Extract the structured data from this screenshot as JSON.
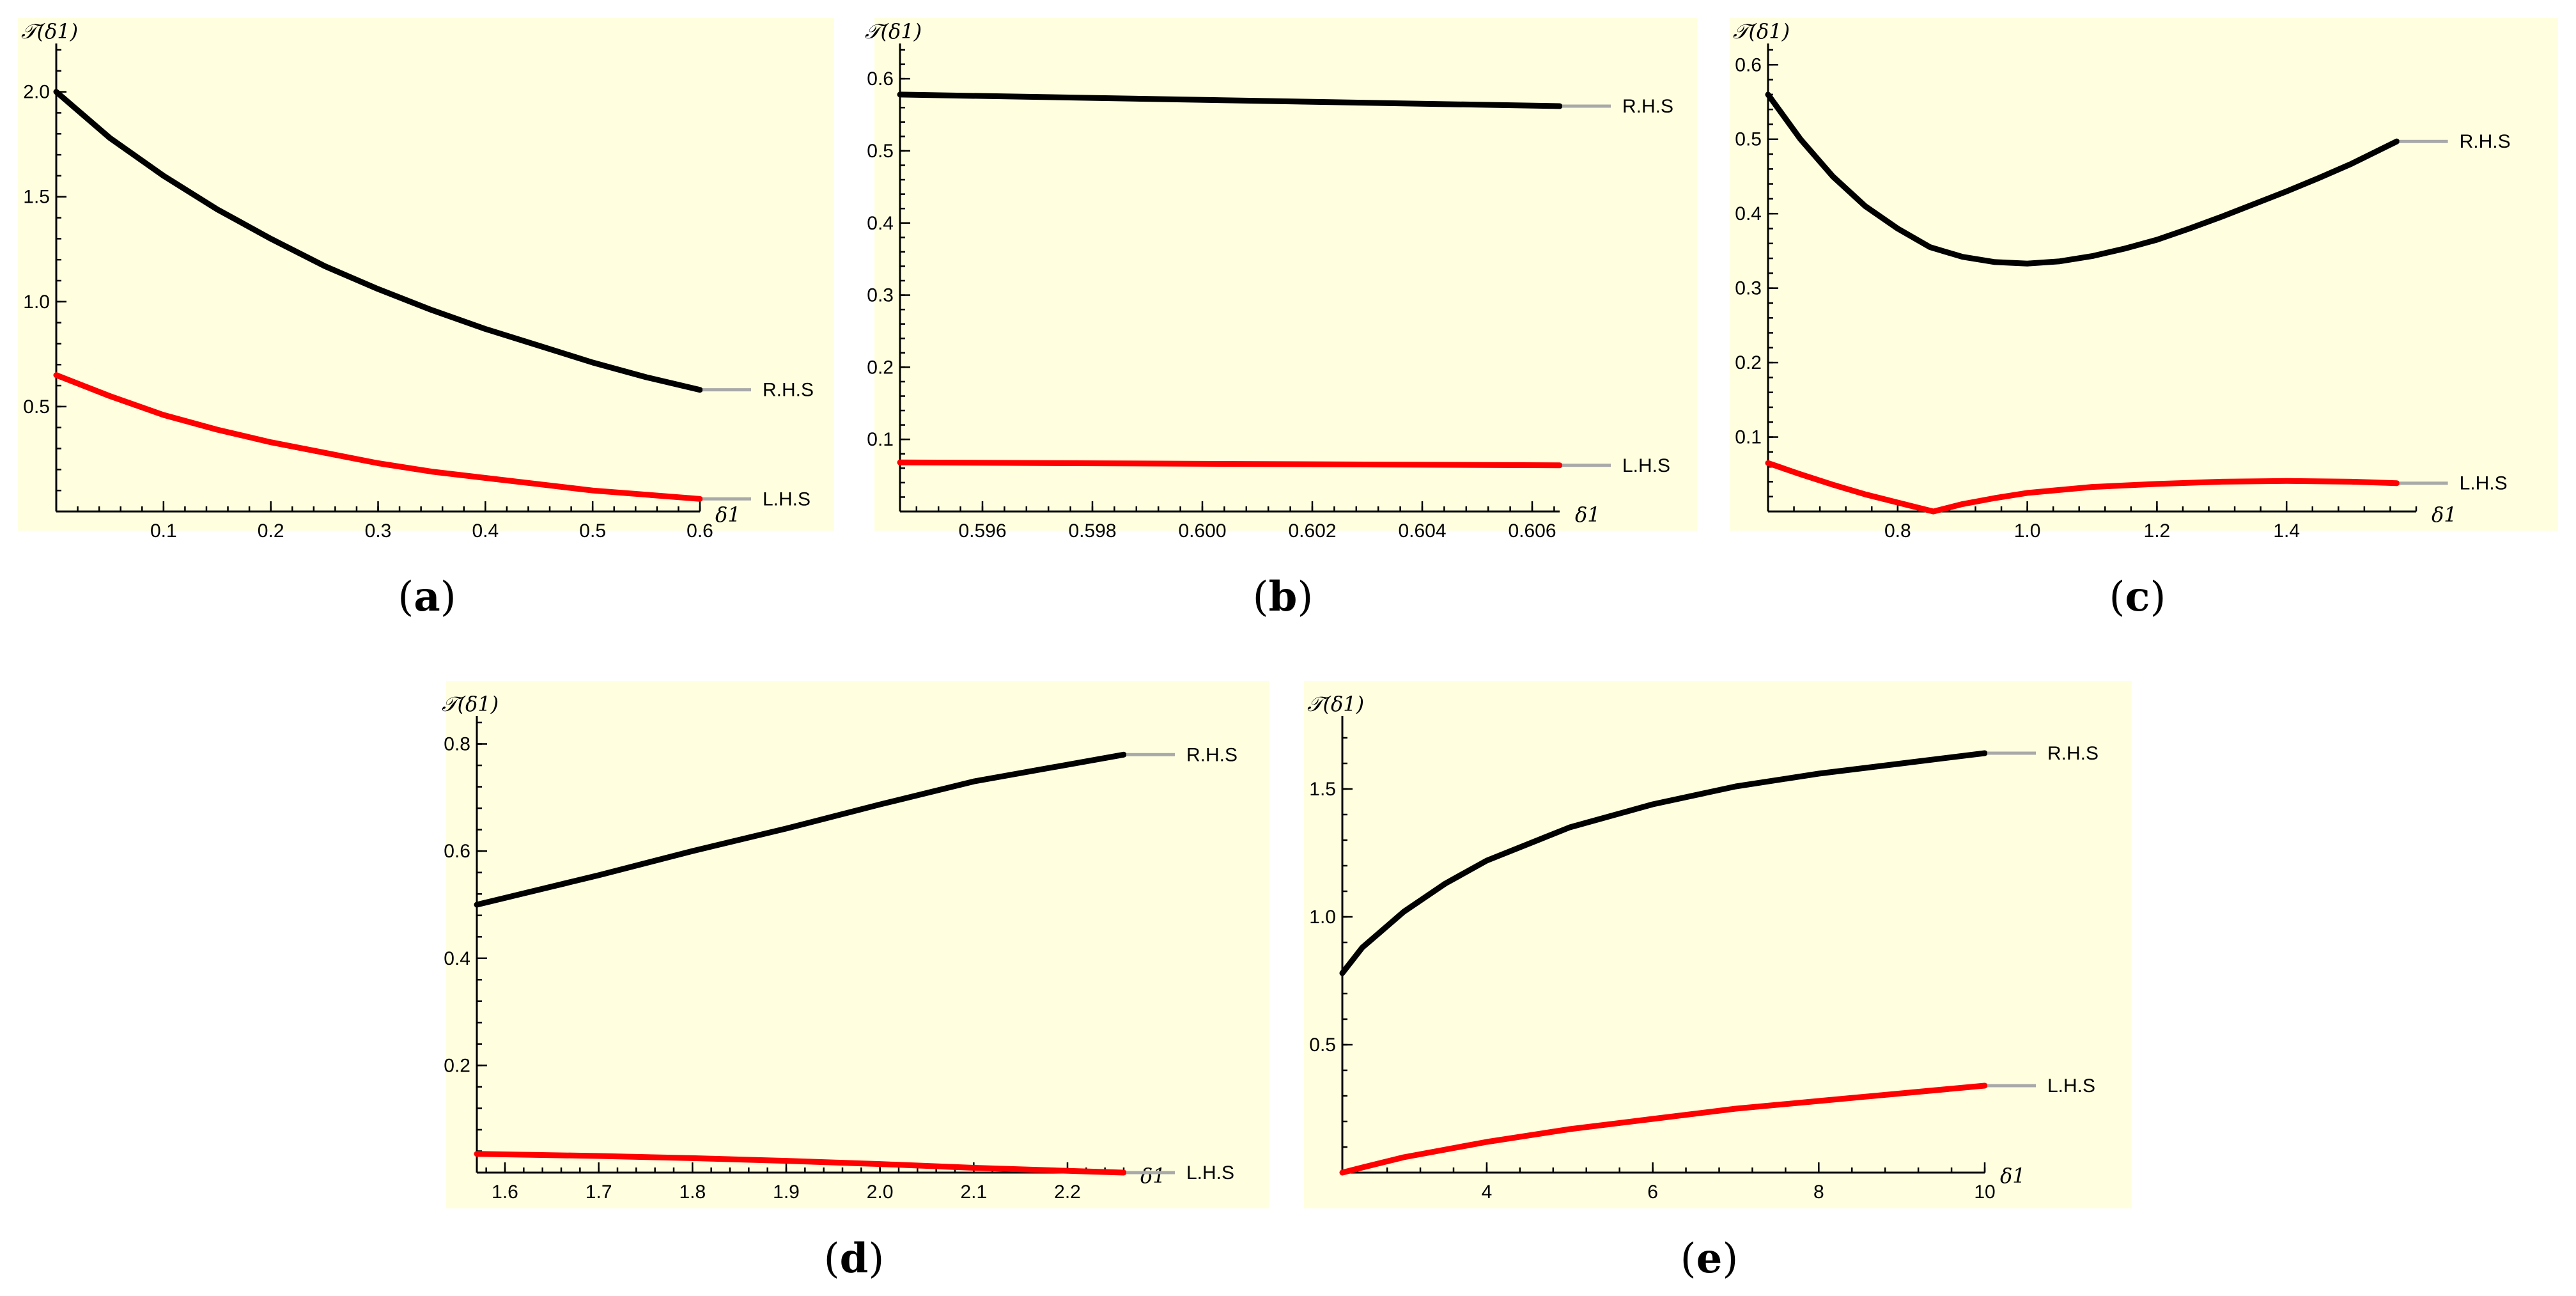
{
  "colors": {
    "panel_bg": "#ffffe0",
    "rhs": "#000000",
    "lhs": "#ff0000",
    "legend_line": "#a9a9a9"
  },
  "chart_data": [
    {
      "id": "a",
      "type": "line",
      "caption": "a",
      "xlabel": "δ1",
      "ylabel": "𝒯(δ1)",
      "xlim": [
        0,
        0.6
      ],
      "ylim": [
        0,
        2.2
      ],
      "xticks": [
        0.1,
        0.2,
        0.3,
        0.4,
        0.5,
        0.6
      ],
      "xtick_labels": [
        "0.1",
        "0.2",
        "0.3",
        "0.4",
        "0.5",
        "0.6"
      ],
      "yticks": [
        0.5,
        1.0,
        1.5,
        2.0
      ],
      "ytick_labels": [
        "0.5",
        "1.0",
        "1.5",
        "2.0"
      ],
      "series": [
        {
          "name": "R.H.S",
          "x": [
            0,
            0.05,
            0.1,
            0.15,
            0.2,
            0.25,
            0.3,
            0.35,
            0.4,
            0.45,
            0.5,
            0.55,
            0.6
          ],
          "y": [
            2.0,
            1.78,
            1.6,
            1.44,
            1.3,
            1.17,
            1.06,
            0.96,
            0.87,
            0.79,
            0.71,
            0.64,
            0.58
          ]
        },
        {
          "name": "L.H.S",
          "x": [
            0,
            0.05,
            0.1,
            0.15,
            0.2,
            0.25,
            0.3,
            0.35,
            0.4,
            0.45,
            0.5,
            0.55,
            0.6
          ],
          "y": [
            0.65,
            0.55,
            0.46,
            0.39,
            0.33,
            0.28,
            0.23,
            0.19,
            0.16,
            0.13,
            0.1,
            0.08,
            0.06
          ]
        }
      ]
    },
    {
      "id": "b",
      "type": "line",
      "caption": "b",
      "xlabel": "δ1",
      "ylabel": "𝒯(δ1)",
      "xlim": [
        0.5945,
        0.6065
      ],
      "ylim": [
        0,
        0.64
      ],
      "xticks": [
        0.596,
        0.598,
        0.6,
        0.602,
        0.604,
        0.606
      ],
      "xtick_labels": [
        "0.596",
        "0.598",
        "0.600",
        "0.602",
        "0.604",
        "0.606"
      ],
      "yticks": [
        0.1,
        0.2,
        0.3,
        0.4,
        0.5,
        0.6
      ],
      "ytick_labels": [
        "0.1",
        "0.2",
        "0.3",
        "0.4",
        "0.5",
        "0.6"
      ],
      "series": [
        {
          "name": "R.H.S",
          "x": [
            0.5945,
            0.6065
          ],
          "y": [
            0.578,
            0.562
          ]
        },
        {
          "name": "L.H.S",
          "x": [
            0.5945,
            0.6065
          ],
          "y": [
            0.068,
            0.064
          ]
        }
      ]
    },
    {
      "id": "c",
      "type": "line",
      "caption": "c",
      "xlabel": "δ1",
      "ylabel": "𝒯(δ1)",
      "xlim": [
        0.6,
        1.6
      ],
      "ylim": [
        0,
        0.62
      ],
      "xticks": [
        0.8,
        1.0,
        1.2,
        1.4
      ],
      "xtick_labels": [
        "0.8",
        "1.0",
        "1.2",
        "1.4"
      ],
      "yticks": [
        0.1,
        0.2,
        0.3,
        0.4,
        0.5,
        0.6
      ],
      "ytick_labels": [
        "0.1",
        "0.2",
        "0.3",
        "0.4",
        "0.5",
        "0.6"
      ],
      "series": [
        {
          "name": "R.H.S",
          "x": [
            0.6,
            0.65,
            0.7,
            0.75,
            0.8,
            0.85,
            0.9,
            0.95,
            1.0,
            1.05,
            1.1,
            1.15,
            1.2,
            1.25,
            1.3,
            1.35,
            1.4,
            1.45,
            1.5,
            1.57
          ],
          "y": [
            0.56,
            0.5,
            0.45,
            0.41,
            0.38,
            0.355,
            0.342,
            0.335,
            0.333,
            0.336,
            0.343,
            0.353,
            0.365,
            0.38,
            0.396,
            0.413,
            0.43,
            0.448,
            0.467,
            0.497
          ]
        },
        {
          "name": "L.H.S",
          "x": [
            0.6,
            0.65,
            0.7,
            0.75,
            0.8,
            0.855,
            0.9,
            0.95,
            1.0,
            1.1,
            1.2,
            1.3,
            1.4,
            1.5,
            1.57
          ],
          "y": [
            0.065,
            0.05,
            0.036,
            0.023,
            0.012,
            0.0,
            0.01,
            0.018,
            0.025,
            0.033,
            0.037,
            0.04,
            0.041,
            0.04,
            0.038
          ]
        }
      ]
    },
    {
      "id": "d",
      "type": "line",
      "caption": "d",
      "xlabel": "δ1",
      "ylabel": "𝒯(δ1)",
      "xlim": [
        1.57,
        2.26
      ],
      "ylim": [
        0,
        0.84
      ],
      "xticks": [
        1.6,
        1.7,
        1.8,
        1.9,
        2.0,
        2.1,
        2.2
      ],
      "xtick_labels": [
        "1.6",
        "1.7",
        "1.8",
        "1.9",
        "2.0",
        "2.1",
        "2.2"
      ],
      "yticks": [
        0.2,
        0.4,
        0.6,
        0.8
      ],
      "ytick_labels": [
        "0.2",
        "0.4",
        "0.6",
        "0.8"
      ],
      "series": [
        {
          "name": "R.H.S",
          "x": [
            1.57,
            1.7,
            1.8,
            1.9,
            2.0,
            2.1,
            2.26
          ],
          "y": [
            0.5,
            0.555,
            0.6,
            0.642,
            0.687,
            0.73,
            0.78
          ]
        },
        {
          "name": "L.H.S",
          "x": [
            1.57,
            1.7,
            1.8,
            1.9,
            2.0,
            2.1,
            2.26
          ],
          "y": [
            0.035,
            0.031,
            0.027,
            0.022,
            0.016,
            0.009,
            0.0
          ]
        }
      ]
    },
    {
      "id": "e",
      "type": "line",
      "caption": "e",
      "xlabel": "δ1",
      "ylabel": "𝒯(δ1)",
      "xlim": [
        2.26,
        10
      ],
      "ylim": [
        0,
        1.76
      ],
      "xticks": [
        4,
        6,
        8,
        10
      ],
      "xtick_labels": [
        "4",
        "6",
        "8",
        "10"
      ],
      "yticks": [
        0.5,
        1.0,
        1.5
      ],
      "ytick_labels": [
        "0.5",
        "1.0",
        "1.5"
      ],
      "series": [
        {
          "name": "R.H.S",
          "x": [
            2.26,
            2.5,
            3,
            3.5,
            4,
            5,
            6,
            7,
            8,
            9,
            10
          ],
          "y": [
            0.78,
            0.88,
            1.02,
            1.13,
            1.22,
            1.35,
            1.44,
            1.51,
            1.56,
            1.6,
            1.64
          ]
        },
        {
          "name": "L.H.S",
          "x": [
            2.26,
            2.5,
            3,
            3.5,
            4,
            5,
            6,
            7,
            8,
            9,
            10
          ],
          "y": [
            0.0,
            0.02,
            0.06,
            0.09,
            0.12,
            0.17,
            0.21,
            0.25,
            0.28,
            0.31,
            0.34
          ]
        }
      ]
    }
  ]
}
